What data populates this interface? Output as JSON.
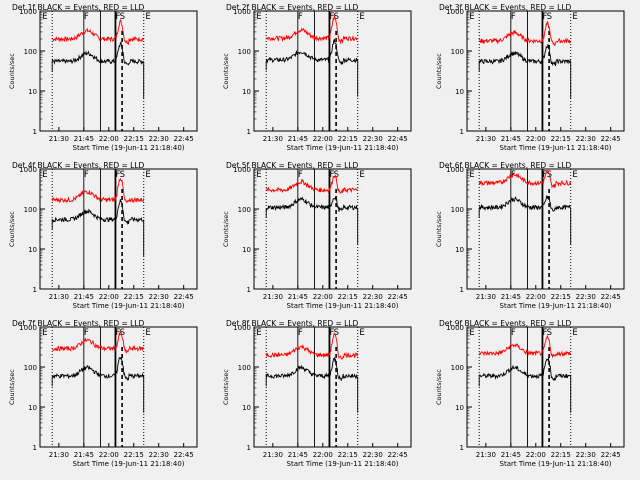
{
  "chart_data": {
    "type": "line",
    "xlabel": "Start Time (19-Jun-11 21:18:40)",
    "ylabel": "Counts/sec",
    "x_tick_labels": [
      "21:30",
      "21:45",
      "22:00",
      "22:15",
      "22:30",
      "22:45"
    ],
    "y_tick_labels": [
      "1",
      "10",
      "100",
      "1000"
    ],
    "y_scale": "log",
    "ylim": [
      1,
      1000
    ],
    "xlim": [
      "21:18:40",
      "22:53:00"
    ],
    "colors": {
      "events": "#000000",
      "lld": "#ff0000",
      "background": "#f0f0f0"
    },
    "markers": [
      "E",
      "F",
      "F",
      "S",
      "E"
    ],
    "panels": [
      {
        "title": "Det 1f BLACK = Events, RED = LLD",
        "events_base": 55,
        "lld_base": 200,
        "peak_events": 150,
        "peak_lld": 550
      },
      {
        "title": "Det 2f BLACK = Events, RED = LLD",
        "events_base": 60,
        "lld_base": 210,
        "peak_events": 180,
        "peak_lld": 700
      },
      {
        "title": "Det 3f BLACK = Events, RED = LLD",
        "events_base": 55,
        "lld_base": 180,
        "peak_events": 140,
        "peak_lld": 480
      },
      {
        "title": "Det 4f BLACK = Events, RED = LLD",
        "events_base": 55,
        "lld_base": 170,
        "peak_events": 160,
        "peak_lld": 600
      },
      {
        "title": "Det 5f BLACK = Events, RED = LLD",
        "events_base": 110,
        "lld_base": 300,
        "peak_events": 200,
        "peak_lld": 700
      },
      {
        "title": "Det 6f BLACK = Events, RED = LLD",
        "events_base": 110,
        "lld_base": 450,
        "peak_events": 200,
        "peak_lld": 850
      },
      {
        "title": "Det 7f BLACK = Events, RED = LLD",
        "events_base": 60,
        "lld_base": 290,
        "peak_events": 180,
        "peak_lld": 700
      },
      {
        "title": "Det 8f BLACK = Events, RED = LLD",
        "events_base": 60,
        "lld_base": 200,
        "peak_events": 160,
        "peak_lld": 650
      },
      {
        "title": "Det 9f BLACK = Events, RED = LLD",
        "events_base": 60,
        "lld_base": 220,
        "peak_events": 170,
        "peak_lld": 550
      }
    ]
  }
}
